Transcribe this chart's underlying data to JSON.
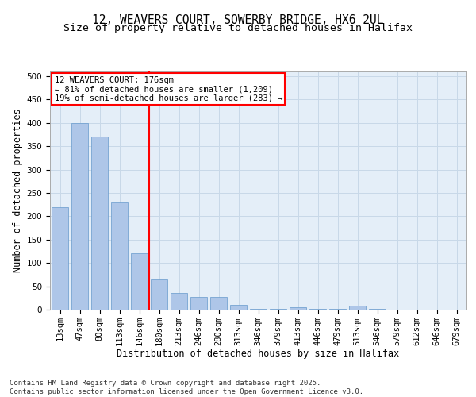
{
  "title_line1": "12, WEAVERS COURT, SOWERBY BRIDGE, HX6 2UL",
  "title_line2": "Size of property relative to detached houses in Halifax",
  "xlabel": "Distribution of detached houses by size in Halifax",
  "ylabel": "Number of detached properties",
  "categories": [
    "13sqm",
    "47sqm",
    "80sqm",
    "113sqm",
    "146sqm",
    "180sqm",
    "213sqm",
    "246sqm",
    "280sqm",
    "313sqm",
    "346sqm",
    "379sqm",
    "413sqm",
    "446sqm",
    "479sqm",
    "513sqm",
    "546sqm",
    "579sqm",
    "612sqm",
    "646sqm",
    "679sqm"
  ],
  "values": [
    220,
    400,
    370,
    230,
    120,
    65,
    35,
    28,
    28,
    10,
    2,
    2,
    5,
    1,
    1,
    8,
    1,
    0,
    0,
    0,
    0
  ],
  "bar_color": "#aec6e8",
  "bar_edge_color": "#6699cc",
  "vline_x": 5.0,
  "vline_color": "red",
  "annotation_box_text": "12 WEAVERS COURT: 176sqm\n← 81% of detached houses are smaller (1,209)\n19% of semi-detached houses are larger (283) →",
  "annotation_box_color": "red",
  "annotation_box_fill": "white",
  "ylim": [
    0,
    510
  ],
  "yticks": [
    0,
    50,
    100,
    150,
    200,
    250,
    300,
    350,
    400,
    450,
    500
  ],
  "grid_color": "#c8d8e8",
  "background_color": "#e4eef8",
  "footer_text": "Contains HM Land Registry data © Crown copyright and database right 2025.\nContains public sector information licensed under the Open Government Licence v3.0.",
  "title_fontsize": 10.5,
  "subtitle_fontsize": 9.5,
  "axis_label_fontsize": 8.5,
  "tick_fontsize": 7.5,
  "annotation_fontsize": 7.5,
  "footer_fontsize": 6.5
}
